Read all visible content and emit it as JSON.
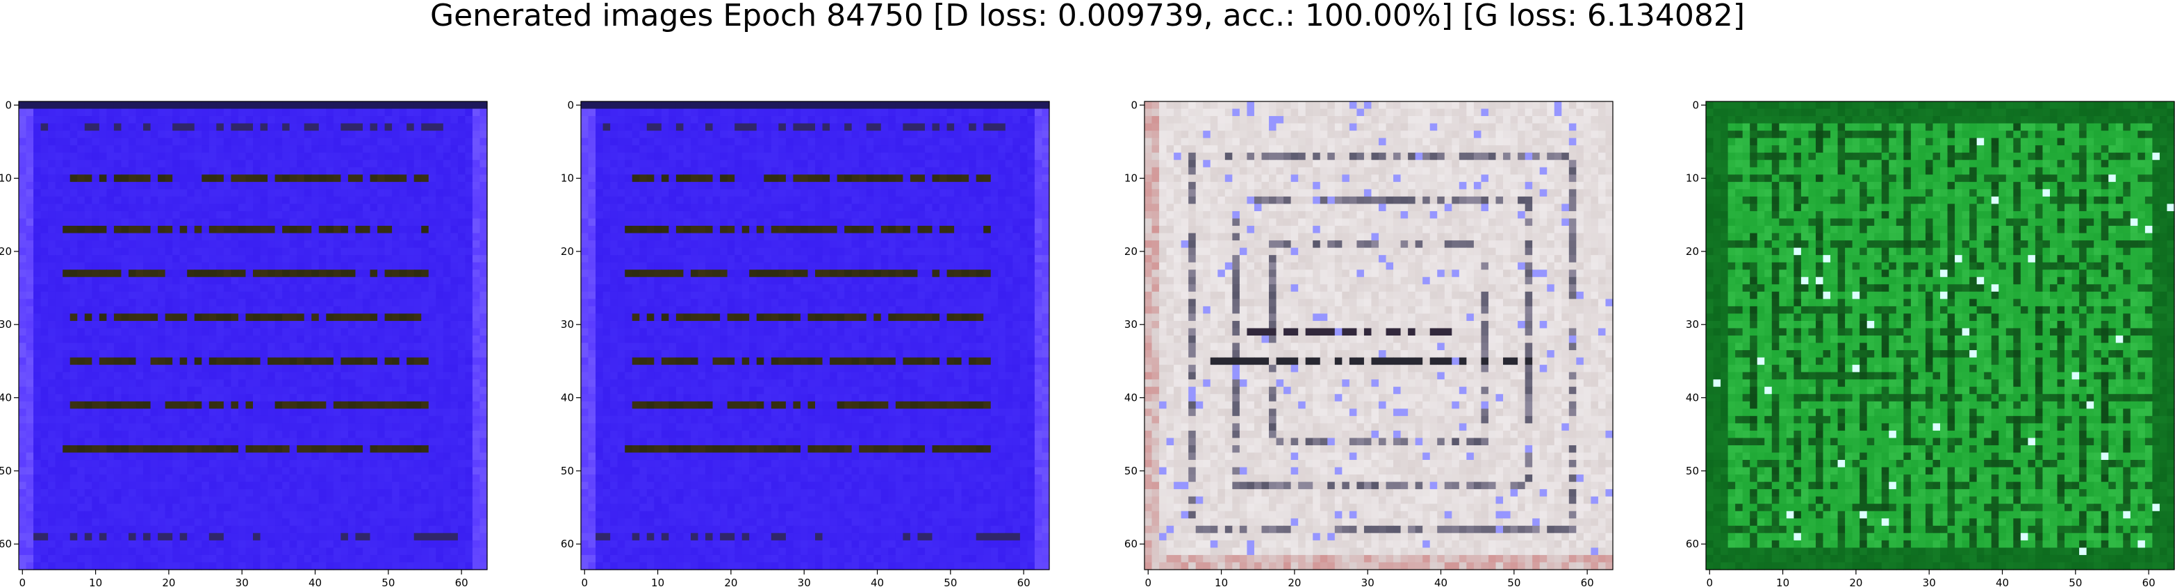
{
  "figure": {
    "title": "Generated images Epoch 84750 [D loss: 0.009739, acc.: 100.00%] [G loss: 6.134082]"
  },
  "chart_data": [
    {
      "type": "heatmap",
      "style": "blue",
      "x_ticks": [
        "0",
        "10",
        "20",
        "30",
        "40",
        "50",
        "60"
      ],
      "y_ticks": [
        "0",
        "10",
        "20",
        "30",
        "40",
        "50",
        "60"
      ],
      "xlim": [
        -0.5,
        63.5
      ],
      "ylim": [
        63.5,
        -0.5
      ],
      "colors": {
        "background": "#3a1ff2",
        "stripe": "#2a2a10",
        "frame": "#5a3cff"
      }
    },
    {
      "type": "heatmap",
      "style": "blue",
      "x_ticks": [
        "0",
        "10",
        "20",
        "30",
        "40",
        "50",
        "60"
      ],
      "y_ticks": [
        "0",
        "10",
        "20",
        "30",
        "40",
        "50",
        "60"
      ],
      "xlim": [
        -0.5,
        63.5
      ],
      "ylim": [
        63.5,
        -0.5
      ],
      "colors": {
        "background": "#3a1ff2",
        "stripe": "#2a2a10",
        "frame": "#5a3cff"
      }
    },
    {
      "type": "heatmap",
      "style": "gray",
      "x_ticks": [
        "0",
        "10",
        "20",
        "30",
        "40",
        "50",
        "60"
      ],
      "y_ticks": [
        "0",
        "10",
        "20",
        "30",
        "40",
        "50",
        "60"
      ],
      "xlim": [
        -0.5,
        63.5
      ],
      "ylim": [
        63.5,
        -0.5
      ],
      "colors": {
        "background": "#dcd3d3",
        "stripe": "#2d2d35",
        "frame": "#c8bcbc"
      }
    },
    {
      "type": "heatmap",
      "style": "green",
      "x_ticks": [
        "0",
        "10",
        "20",
        "30",
        "40",
        "50",
        "60"
      ],
      "y_ticks": [
        "0",
        "10",
        "20",
        "30",
        "40",
        "50",
        "60"
      ],
      "xlim": [
        -0.5,
        63.5
      ],
      "ylim": [
        63.5,
        -0.5
      ],
      "colors": {
        "background": "#1fa835",
        "stripe": "#0b3a12",
        "frame": "#0d6a1e"
      }
    }
  ]
}
